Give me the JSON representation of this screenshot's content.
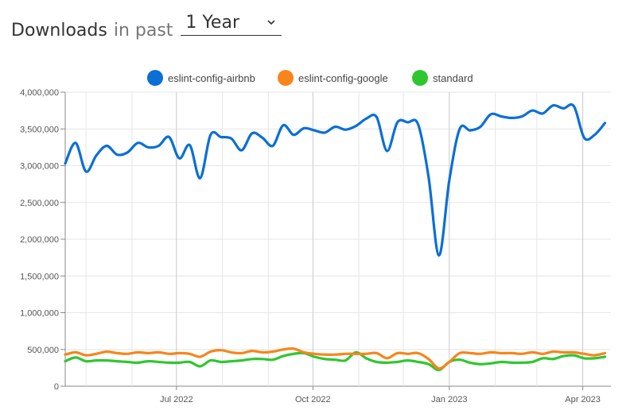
{
  "header": {
    "title": "Downloads",
    "in_past": "in past",
    "period": "1 Year",
    "chevron_icon": "chevron-down-icon"
  },
  "colors": {
    "eslint-config-airbnb": "#0b6fd6",
    "eslint-config-google": "#f7851c",
    "standard": "#2fc72f",
    "grid": "#e6e6e6",
    "axis": "#888888"
  },
  "chart_data": {
    "type": "line",
    "x_labels": [
      "Jul 2022",
      "Oct 2022",
      "Jan 2023",
      "Apr 2023"
    ],
    "y_ticks": [
      "0",
      "500,000",
      "1,000,000",
      "1,500,000",
      "2,000,000",
      "2,500,000",
      "3,000,000",
      "3,500,000",
      "4,000,000"
    ],
    "ylim": [
      0,
      4000000
    ],
    "x": [
      "2022-04-17",
      "2022-04-24",
      "2022-05-01",
      "2022-05-08",
      "2022-05-15",
      "2022-05-22",
      "2022-05-29",
      "2022-06-05",
      "2022-06-12",
      "2022-06-19",
      "2022-06-26",
      "2022-07-03",
      "2022-07-10",
      "2022-07-17",
      "2022-07-24",
      "2022-07-31",
      "2022-08-07",
      "2022-08-14",
      "2022-08-21",
      "2022-08-28",
      "2022-09-04",
      "2022-09-11",
      "2022-09-18",
      "2022-09-25",
      "2022-10-02",
      "2022-10-09",
      "2022-10-16",
      "2022-10-23",
      "2022-10-30",
      "2022-11-06",
      "2022-11-13",
      "2022-11-20",
      "2022-11-27",
      "2022-12-04",
      "2022-12-11",
      "2022-12-18",
      "2022-12-25",
      "2023-01-01",
      "2023-01-08",
      "2023-01-15",
      "2023-01-22",
      "2023-01-29",
      "2023-02-05",
      "2023-02-12",
      "2023-02-19",
      "2023-02-26",
      "2023-03-05",
      "2023-03-12",
      "2023-03-19",
      "2023-03-26",
      "2023-04-02",
      "2023-04-09",
      "2023-04-16"
    ],
    "series": [
      {
        "name": "eslint-config-airbnb",
        "values": [
          3030000,
          3310000,
          2920000,
          3140000,
          3270000,
          3150000,
          3180000,
          3310000,
          3250000,
          3270000,
          3390000,
          3100000,
          3280000,
          2830000,
          3420000,
          3390000,
          3370000,
          3210000,
          3440000,
          3380000,
          3270000,
          3550000,
          3420000,
          3510000,
          3480000,
          3450000,
          3530000,
          3490000,
          3540000,
          3640000,
          3660000,
          3200000,
          3590000,
          3590000,
          3560000,
          2850000,
          1780000,
          2800000,
          3500000,
          3480000,
          3530000,
          3700000,
          3670000,
          3650000,
          3670000,
          3750000,
          3710000,
          3820000,
          3780000,
          3810000,
          3380000,
          3420000,
          3580000
        ]
      },
      {
        "name": "eslint-config-google",
        "values": [
          430000,
          460000,
          420000,
          440000,
          470000,
          450000,
          440000,
          460000,
          450000,
          460000,
          440000,
          450000,
          440000,
          400000,
          470000,
          490000,
          460000,
          450000,
          480000,
          460000,
          470000,
          500000,
          510000,
          460000,
          440000,
          430000,
          430000,
          440000,
          440000,
          440000,
          450000,
          380000,
          450000,
          440000,
          450000,
          370000,
          240000,
          330000,
          450000,
          450000,
          440000,
          460000,
          450000,
          450000,
          440000,
          460000,
          440000,
          470000,
          460000,
          460000,
          440000,
          420000,
          450000
        ]
      },
      {
        "name": "standard",
        "values": [
          340000,
          390000,
          340000,
          350000,
          350000,
          340000,
          330000,
          320000,
          340000,
          330000,
          320000,
          320000,
          330000,
          270000,
          350000,
          330000,
          340000,
          350000,
          370000,
          370000,
          360000,
          410000,
          440000,
          450000,
          400000,
          370000,
          360000,
          350000,
          460000,
          380000,
          330000,
          320000,
          330000,
          350000,
          330000,
          300000,
          220000,
          330000,
          360000,
          320000,
          300000,
          310000,
          330000,
          320000,
          320000,
          330000,
          380000,
          370000,
          410000,
          420000,
          380000,
          380000,
          400000
        ]
      }
    ],
    "legend_position": "top-center",
    "grid": true
  }
}
